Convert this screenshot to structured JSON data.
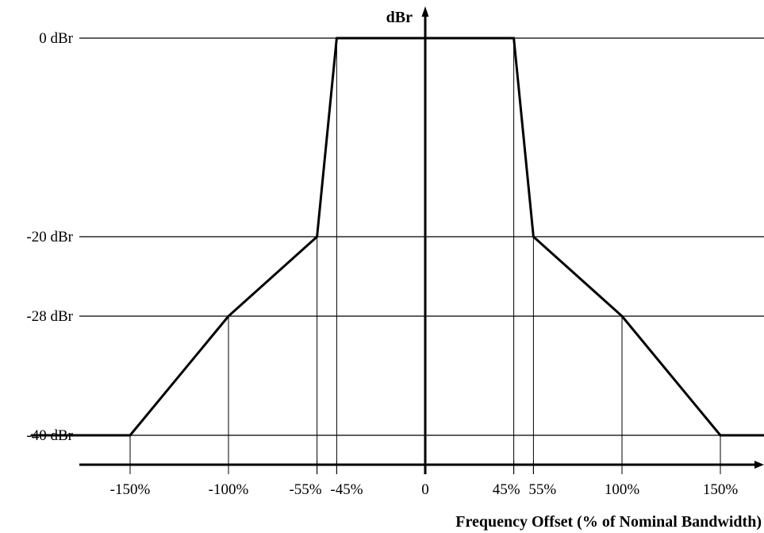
{
  "chart_data": {
    "type": "line",
    "title": "",
    "xlabel": "Frequency Offset (% of Nominal Bandwidth)",
    "ylabel": "dBr",
    "xlim": [
      -200,
      200
    ],
    "ylim": [
      -45,
      0
    ],
    "x_ticks": [
      {
        "value": -150,
        "label": "-150%"
      },
      {
        "value": -100,
        "label": "-100%"
      },
      {
        "value": -55,
        "label": "-55%"
      },
      {
        "value": -45,
        "label": "-45%"
      },
      {
        "value": 0,
        "label": "0"
      },
      {
        "value": 45,
        "label": "45%"
      },
      {
        "value": 55,
        "label": "55%"
      },
      {
        "value": 100,
        "label": "100%"
      },
      {
        "value": 150,
        "label": "150%"
      }
    ],
    "y_ticks": [
      {
        "value": 0,
        "label": "0 dBr"
      },
      {
        "value": -20,
        "label": "-20 dBr"
      },
      {
        "value": -28,
        "label": "-28 dBr"
      },
      {
        "value": -40,
        "label": "-40 dBr"
      }
    ],
    "series": [
      {
        "x": [
          -200,
          -150,
          -100,
          -55,
          -45,
          45,
          55,
          100,
          150,
          200
        ],
        "y": [
          -40,
          -40,
          -28,
          -20,
          0,
          0,
          -20,
          -28,
          -40,
          -40
        ]
      }
    ],
    "grid": "horizontal lines at each y tick; vertical drop lines at each mask breakpoint",
    "legend": "none"
  }
}
